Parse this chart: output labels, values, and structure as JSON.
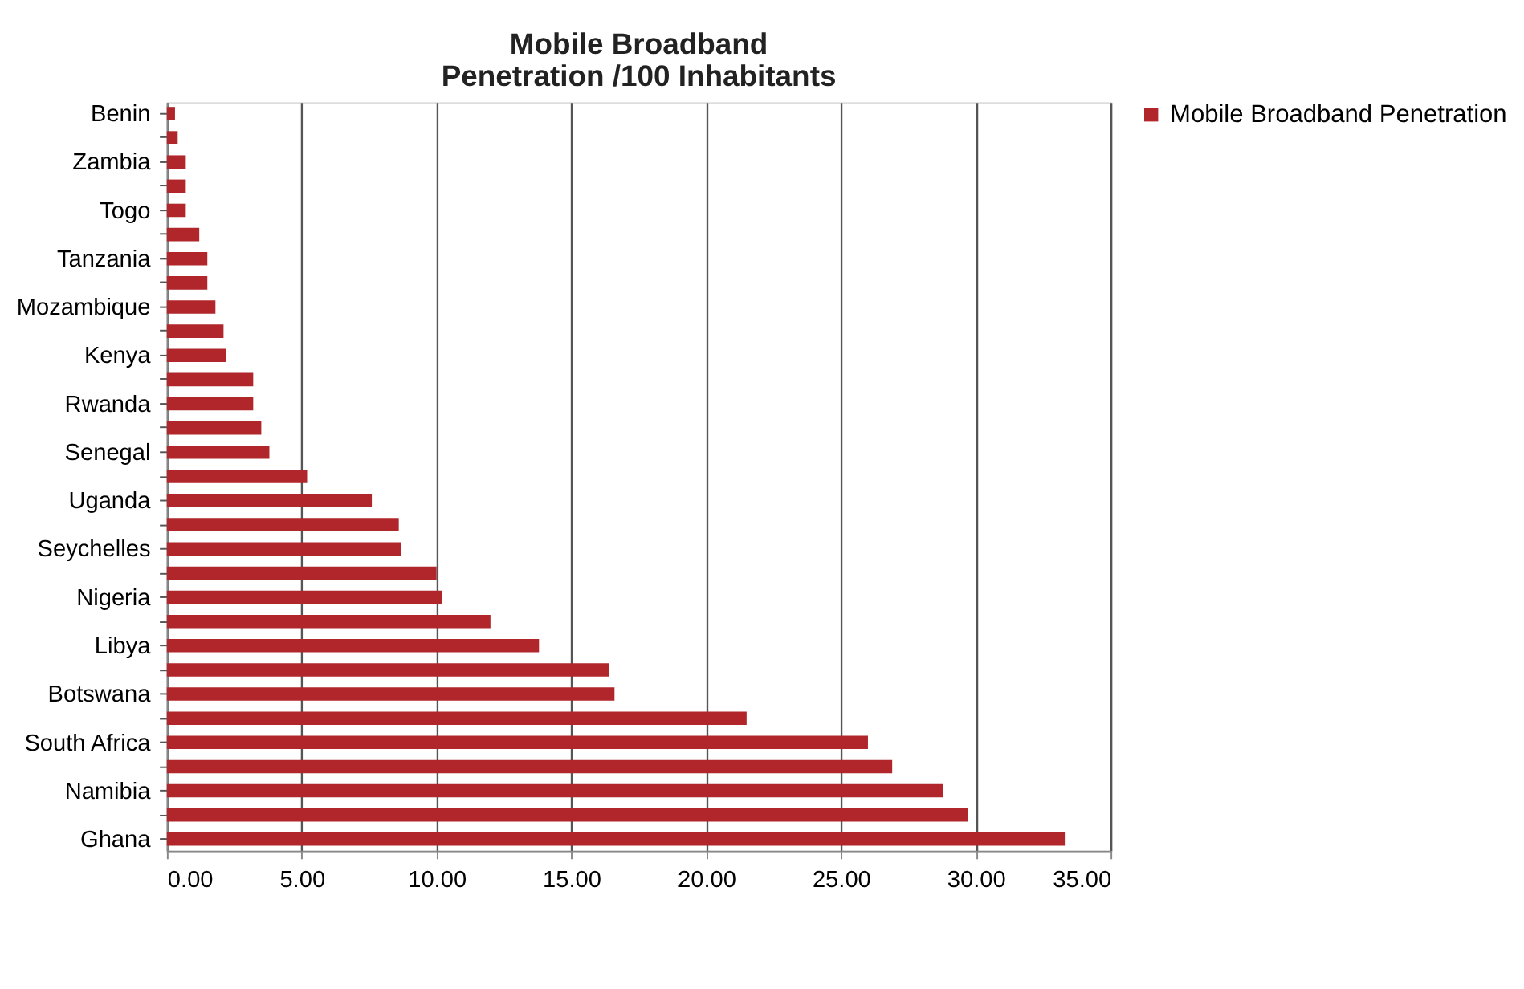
{
  "chart_data": {
    "type": "bar",
    "orientation": "horizontal",
    "title": "Mobile Broadband\nPenetration /100 Inhabitants",
    "categories": [
      "Benin",
      null,
      "Zambia",
      null,
      "Togo",
      null,
      "Tanzania",
      null,
      "Mozambique",
      null,
      "Kenya",
      null,
      "Rwanda",
      null,
      "Senegal",
      null,
      "Uganda",
      null,
      "Seychelles",
      null,
      "Nigeria",
      null,
      "Libya",
      null,
      "Botswana",
      null,
      "South Africa",
      null,
      "Namibia",
      null,
      "Ghana"
    ],
    "series": [
      {
        "name": "Mobile Broadband Penetration",
        "color": "#b0262a",
        "values": [
          0.3,
          0.4,
          0.7,
          0.7,
          0.7,
          1.2,
          1.5,
          1.5,
          1.8,
          2.1,
          2.2,
          3.2,
          3.2,
          3.5,
          3.8,
          5.2,
          7.6,
          8.6,
          8.7,
          10.0,
          10.2,
          12.0,
          13.8,
          16.4,
          16.6,
          21.5,
          26.0,
          26.9,
          28.8,
          29.7,
          33.3
        ]
      }
    ],
    "xlim": [
      0,
      35
    ],
    "xticks": [
      {
        "value": 0,
        "label": "0.00"
      },
      {
        "value": 5,
        "label": "5.00"
      },
      {
        "value": 10,
        "label": "10.00"
      },
      {
        "value": 15,
        "label": "15.00"
      },
      {
        "value": 20,
        "label": "20.00"
      },
      {
        "value": 25,
        "label": "25.00"
      },
      {
        "value": 30,
        "label": "30.00"
      },
      {
        "value": 35,
        "label": "35.00"
      }
    ],
    "grid": "x",
    "legend": "right"
  }
}
